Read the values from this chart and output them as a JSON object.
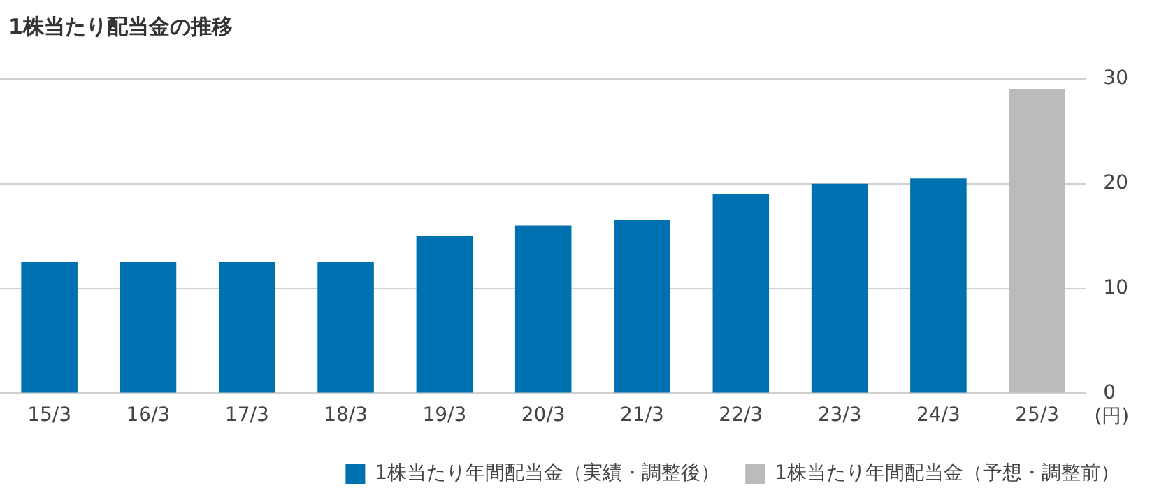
{
  "chart_data": {
    "type": "bar",
    "title": "1株当たり配当金の推移",
    "ylabel": "(円)",
    "categories": [
      "15/3",
      "16/3",
      "17/3",
      "18/3",
      "19/3",
      "20/3",
      "21/3",
      "22/3",
      "23/3",
      "24/3",
      "25/3"
    ],
    "series": [
      {
        "name": "1株当たり年間配当金（実績・調整後）",
        "color": "#0071b0",
        "values": [
          12.5,
          12.5,
          12.5,
          12.5,
          15,
          16,
          16.5,
          19,
          20,
          20.5,
          null
        ]
      },
      {
        "name": "1株当たり年間配当金（予想・調整前）",
        "color": "#bbbbbb",
        "values": [
          null,
          null,
          null,
          null,
          null,
          null,
          null,
          null,
          null,
          null,
          29
        ]
      }
    ],
    "ylim": [
      0,
      30
    ],
    "yticks": [
      0,
      10,
      20,
      30
    ],
    "grid": "y",
    "legend": "bottom"
  }
}
